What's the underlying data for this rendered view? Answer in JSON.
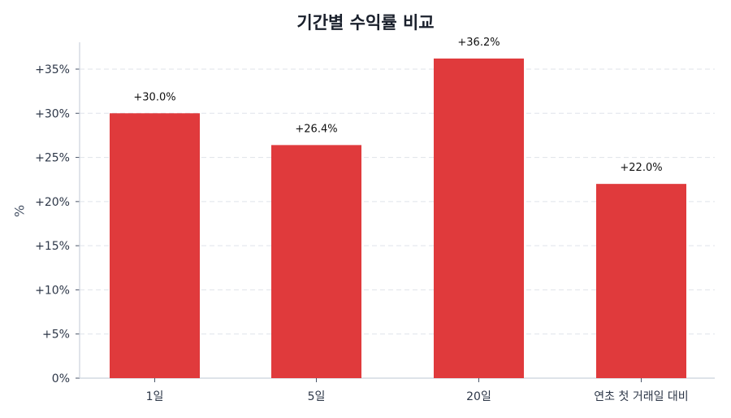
{
  "chart_data": {
    "type": "bar",
    "title": "기간별 수익률 비교",
    "xlabel": "",
    "ylabel": "%",
    "categories": [
      "1일",
      "5일",
      "20일",
      "연초 첫 거래일 대비"
    ],
    "values": [
      30.0,
      26.4,
      36.2,
      22.0
    ],
    "value_labels": [
      "+30.0%",
      "+26.4%",
      "+36.2%",
      "+22.0%"
    ],
    "ylim": [
      0,
      38
    ],
    "yticks": [
      0,
      5,
      10,
      15,
      20,
      25,
      30,
      35
    ],
    "ytick_labels": [
      "0%",
      "+5%",
      "+10%",
      "+15%",
      "+20%",
      "+25%",
      "+30%",
      "+35%"
    ],
    "grid": "horizontal dashed",
    "legend": null,
    "bar_color": "#e03a3c"
  }
}
